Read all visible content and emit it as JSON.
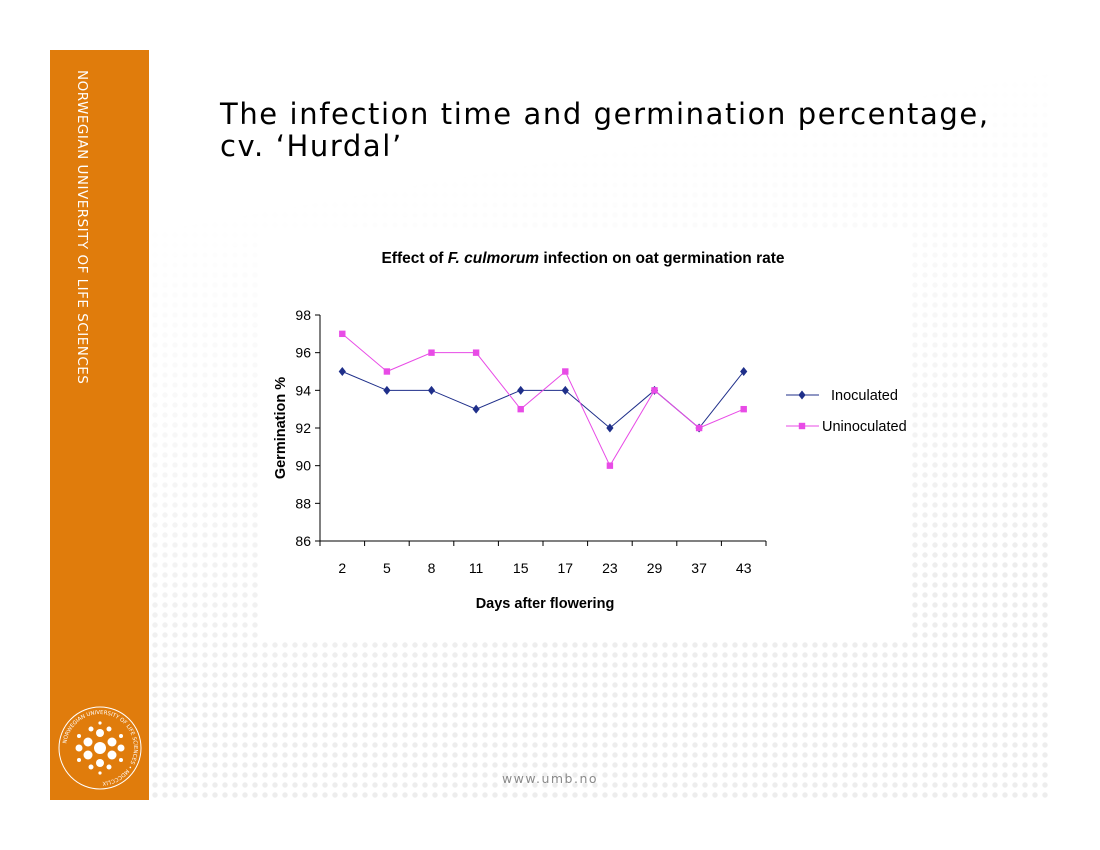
{
  "sidebar": {
    "university_name": "NORWEGIAN UNIVERSITY OF LIFE SCIENCES",
    "accent_color": "#e07c0c"
  },
  "logo": {
    "icon": "university-seal-icon",
    "ring_text": "NORWEGIAN UNIVERSITY OF LIFE SCIENCES • MDCCCLIX"
  },
  "slide": {
    "title_line1": "The infection time and germination percentage,",
    "title_line2": "cv. ‘Hurdal’"
  },
  "chart_data": {
    "type": "line",
    "title_prefix": "Effect of ",
    "title_italic": "F. culmorum",
    "title_suffix": " infection on oat germination rate",
    "xlabel": "Days after flowering",
    "ylabel": "Germination %",
    "categories": [
      "2",
      "5",
      "8",
      "11",
      "15",
      "17",
      "23",
      "29",
      "37",
      "43"
    ],
    "ylim": [
      86,
      98
    ],
    "yticks": [
      86,
      88,
      90,
      92,
      94,
      96,
      98
    ],
    "grid": false,
    "legend_position": "right",
    "series": [
      {
        "name": "Inoculated",
        "color": "#1f2f8a",
        "marker": "diamond",
        "values": [
          95,
          94,
          94,
          93,
          94,
          94,
          92,
          94,
          92,
          95
        ]
      },
      {
        "name": "Uninoculated",
        "color": "#e84be6",
        "marker": "square",
        "values": [
          97,
          95,
          96,
          96,
          93,
          95,
          90,
          94,
          92,
          93
        ]
      }
    ]
  },
  "footer": {
    "url": "www.umb.no"
  }
}
